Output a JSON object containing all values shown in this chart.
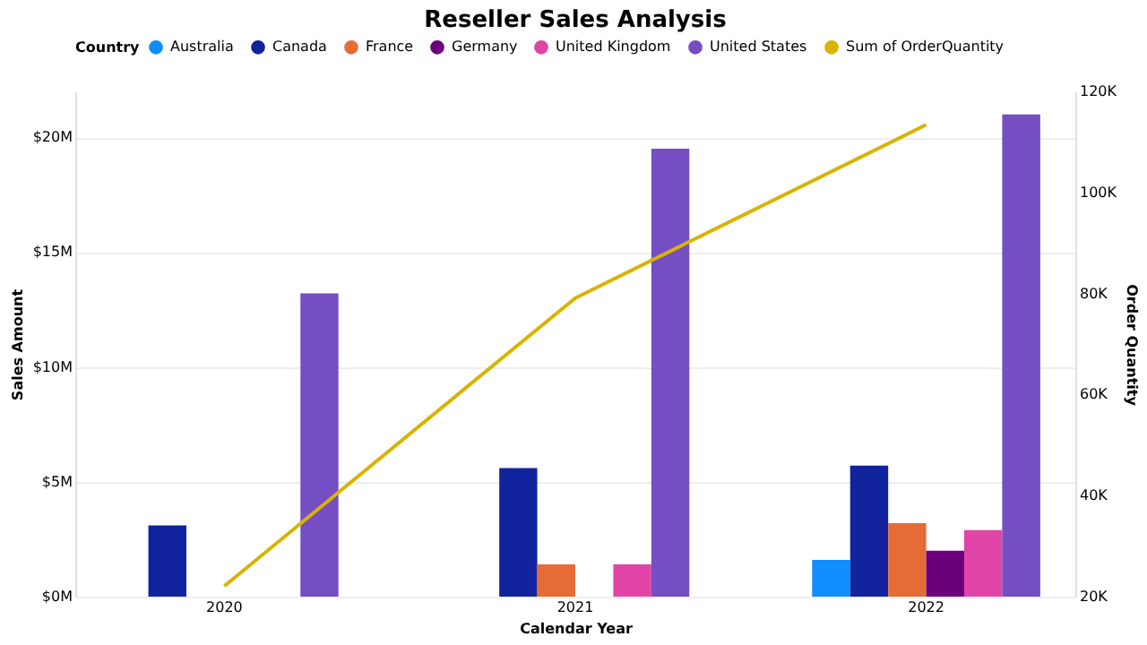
{
  "chart_data": {
    "type": "bar",
    "title": "Reseller Sales Analysis",
    "xlabel": "Calendar Year",
    "ylabel": "Sales Amount",
    "y2label": "Order Quantity",
    "legend_title": "Country",
    "legend": "top",
    "grid": "y",
    "categories": [
      "2020",
      "2021",
      "2022"
    ],
    "ylim": [
      0,
      22000000
    ],
    "yticks": [
      {
        "value": 0,
        "label": "$0M"
      },
      {
        "value": 5000000,
        "label": "$5M"
      },
      {
        "value": 10000000,
        "label": "$10M"
      },
      {
        "value": 15000000,
        "label": "$15M"
      },
      {
        "value": 20000000,
        "label": "$20M"
      }
    ],
    "y2lim": [
      20000,
      120000
    ],
    "y2ticks": [
      {
        "value": 20000,
        "label": "20K"
      },
      {
        "value": 40000,
        "label": "40K"
      },
      {
        "value": 60000,
        "label": "60K"
      },
      {
        "value": 80000,
        "label": "80K"
      },
      {
        "value": 100000,
        "label": "100K"
      },
      {
        "value": 120000,
        "label": "120K"
      }
    ],
    "series": [
      {
        "name": "Australia",
        "color": "#118dff",
        "values": [
          null,
          null,
          1600000
        ]
      },
      {
        "name": "Canada",
        "color": "#12239e",
        "values": [
          3100000,
          5600000,
          5700000
        ]
      },
      {
        "name": "France",
        "color": "#e66c37",
        "values": [
          null,
          1400000,
          3200000
        ]
      },
      {
        "name": "Germany",
        "color": "#6b007b",
        "values": [
          null,
          null,
          2000000
        ]
      },
      {
        "name": "United Kingdom",
        "color": "#e044a7",
        "values": [
          null,
          1400000,
          2900000
        ]
      },
      {
        "name": "United States",
        "color": "#744ec2",
        "values": [
          13200000,
          19500000,
          21000000
        ]
      },
      {
        "name": "Sum of OrderQuantity",
        "color": "#d9b300",
        "type": "line",
        "axis": "y2",
        "values": [
          22100,
          79100,
          113400
        ]
      }
    ]
  }
}
